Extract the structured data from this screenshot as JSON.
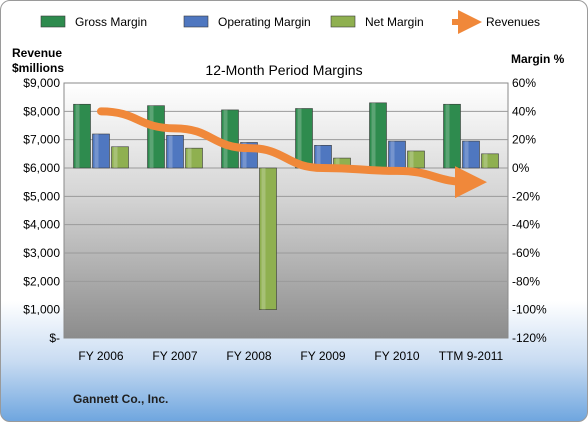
{
  "chart_data": {
    "type": "bar",
    "title": "12-Month Period Margins",
    "categories": [
      "FY 2006",
      "FY 2007",
      "FY 2008",
      "FY 2009",
      "FY 2010",
      "TTM 9-2011"
    ],
    "series": [
      {
        "name": "Gross Margin",
        "axis": "right",
        "color": "#2e8b4e",
        "values": [
          45,
          44,
          41,
          42,
          46,
          45
        ]
      },
      {
        "name": "Operating Margin",
        "axis": "right",
        "color": "#4f77c0",
        "values": [
          24,
          23,
          18,
          16,
          19,
          19
        ]
      },
      {
        "name": "Net Margin",
        "axis": "right",
        "color": "#8fb050",
        "values": [
          15,
          14,
          -100,
          7,
          12,
          10
        ]
      },
      {
        "name": "Revenues",
        "axis": "left",
        "type": "line",
        "color": "#f0883a",
        "values": [
          8000,
          7400,
          6700,
          6000,
          5900,
          5500
        ]
      }
    ],
    "left_axis": {
      "title_line1": "Revenue",
      "title_line2": "$millions",
      "min": 0,
      "max": 9000,
      "tick_labels": [
        "$-",
        "$1,000",
        "$2,000",
        "$3,000",
        "$4,000",
        "$5,000",
        "$6,000",
        "$7,000",
        "$8,000",
        "$9,000"
      ]
    },
    "right_axis": {
      "title": "Margin %",
      "min": -120,
      "max": 60,
      "tick_labels": [
        "-120%",
        "-100%",
        "-80%",
        "-60%",
        "-40%",
        "-20%",
        "0%",
        "20%",
        "40%",
        "60%"
      ]
    },
    "grid": true,
    "legend_position": "top"
  },
  "footer": {
    "company": "Gannett Co., Inc."
  },
  "colors": {
    "plot_top": "#ffffff",
    "plot_bottom": "#8c8c8c",
    "frame_bottom": "#6fa6df"
  }
}
